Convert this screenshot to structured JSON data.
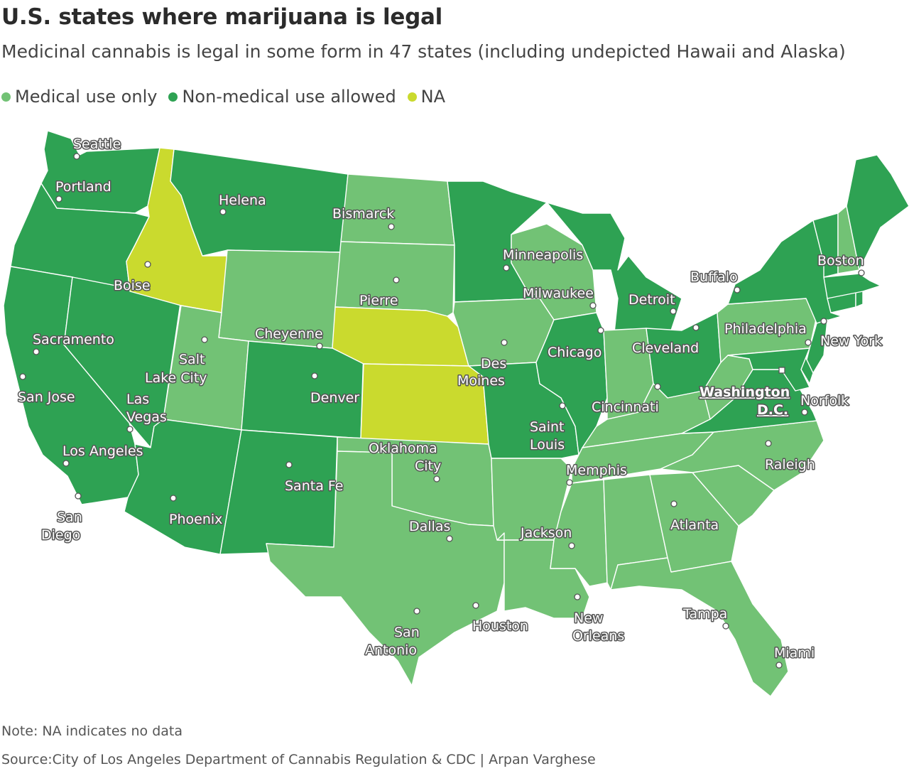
{
  "header": {
    "title": "U.S. states where marijuana is legal",
    "subtitle": "Medicinal cannabis is legal in some form in 47 states (including undepicted Hawaii and Alaska)"
  },
  "legend": [
    {
      "label": "Medical use only",
      "color": "#72c275"
    },
    {
      "label": "Non-medical use allowed",
      "color": "#2ea253"
    },
    {
      "label": "NA",
      "color": "#cada2e"
    }
  ],
  "colors": {
    "medical": "#72c275",
    "nonmedical": "#2ea253",
    "na": "#cada2e",
    "border": "#ffffff"
  },
  "states": [
    {
      "name": "WA",
      "category": "nonmedical"
    },
    {
      "name": "OR",
      "category": "nonmedical"
    },
    {
      "name": "CA",
      "category": "nonmedical"
    },
    {
      "name": "NV",
      "category": "nonmedical"
    },
    {
      "name": "ID",
      "category": "na"
    },
    {
      "name": "MT",
      "category": "nonmedical"
    },
    {
      "name": "WY",
      "category": "medical"
    },
    {
      "name": "UT",
      "category": "medical"
    },
    {
      "name": "AZ",
      "category": "nonmedical"
    },
    {
      "name": "CO",
      "category": "nonmedical"
    },
    {
      "name": "NM",
      "category": "nonmedical"
    },
    {
      "name": "ND",
      "category": "medical"
    },
    {
      "name": "SD",
      "category": "medical"
    },
    {
      "name": "NE",
      "category": "na"
    },
    {
      "name": "KS",
      "category": "na"
    },
    {
      "name": "OK",
      "category": "medical"
    },
    {
      "name": "TX",
      "category": "medical"
    },
    {
      "name": "MN",
      "category": "nonmedical"
    },
    {
      "name": "IA",
      "category": "medical"
    },
    {
      "name": "MO",
      "category": "nonmedical"
    },
    {
      "name": "AR",
      "category": "medical"
    },
    {
      "name": "LA",
      "category": "medical"
    },
    {
      "name": "WI",
      "category": "medical"
    },
    {
      "name": "IL",
      "category": "nonmedical"
    },
    {
      "name": "MI",
      "category": "nonmedical"
    },
    {
      "name": "IN",
      "category": "medical"
    },
    {
      "name": "OH",
      "category": "nonmedical"
    },
    {
      "name": "KY",
      "category": "medical"
    },
    {
      "name": "TN",
      "category": "medical"
    },
    {
      "name": "MS",
      "category": "medical"
    },
    {
      "name": "AL",
      "category": "medical"
    },
    {
      "name": "GA",
      "category": "medical"
    },
    {
      "name": "FL",
      "category": "medical"
    },
    {
      "name": "SC",
      "category": "medical"
    },
    {
      "name": "NC",
      "category": "medical"
    },
    {
      "name": "VA",
      "category": "nonmedical"
    },
    {
      "name": "WV",
      "category": "medical"
    },
    {
      "name": "PA",
      "category": "medical"
    },
    {
      "name": "NY",
      "category": "nonmedical"
    },
    {
      "name": "VT",
      "category": "nonmedical"
    },
    {
      "name": "NH",
      "category": "medical"
    },
    {
      "name": "ME",
      "category": "nonmedical"
    },
    {
      "name": "MA",
      "category": "nonmedical"
    },
    {
      "name": "CT",
      "category": "nonmedical"
    },
    {
      "name": "RI",
      "category": "nonmedical"
    },
    {
      "name": "NJ",
      "category": "nonmedical"
    },
    {
      "name": "DE",
      "category": "nonmedical"
    },
    {
      "name": "MD",
      "category": "nonmedical"
    }
  ],
  "cities": [
    {
      "label": "Seattle"
    },
    {
      "label": "Portland"
    },
    {
      "label": "Helena"
    },
    {
      "label": "Bismarck"
    },
    {
      "label": "Boise"
    },
    {
      "label": "Minneapolis"
    },
    {
      "label": "Pierre"
    },
    {
      "label": "Milwaukee"
    },
    {
      "label": "Detroit"
    },
    {
      "label": "Buffalo"
    },
    {
      "label": "Boston"
    },
    {
      "label": "Sacramento"
    },
    {
      "label": "Cheyenne"
    },
    {
      "label": "Salt"
    },
    {
      "label": "Lake City"
    },
    {
      "label": "Chicago"
    },
    {
      "label": "Cleveland"
    },
    {
      "label": "Philadelphia"
    },
    {
      "label": "New York"
    },
    {
      "label": "Des"
    },
    {
      "label": "Moines"
    },
    {
      "label": "San Jose"
    },
    {
      "label": "Denver"
    },
    {
      "label": "Las"
    },
    {
      "label": "Vegas"
    },
    {
      "label": "Washington"
    },
    {
      "label": "D.C."
    },
    {
      "label": "Norfolk"
    },
    {
      "label": "Cincinnati"
    },
    {
      "label": "Saint"
    },
    {
      "label": "Louis"
    },
    {
      "label": "Los Angeles"
    },
    {
      "label": "Oklahoma"
    },
    {
      "label": "City"
    },
    {
      "label": "Memphis"
    },
    {
      "label": "Raleigh"
    },
    {
      "label": "Santa Fe"
    },
    {
      "label": "San"
    },
    {
      "label": "Diego"
    },
    {
      "label": "Phoenix"
    },
    {
      "label": "Dallas"
    },
    {
      "label": "Atlanta"
    },
    {
      "label": "Jackson"
    },
    {
      "label": "Tampa"
    },
    {
      "label": "New"
    },
    {
      "label": "Orleans"
    },
    {
      "label": "Houston"
    },
    {
      "label": "San"
    },
    {
      "label": "Antonio"
    },
    {
      "label": "Miami"
    }
  ],
  "footer": {
    "note": "Note: NA indicates no data",
    "source": "Source:City of Los Angeles Department of Cannabis Regulation & CDC | Arpan Varghese"
  }
}
